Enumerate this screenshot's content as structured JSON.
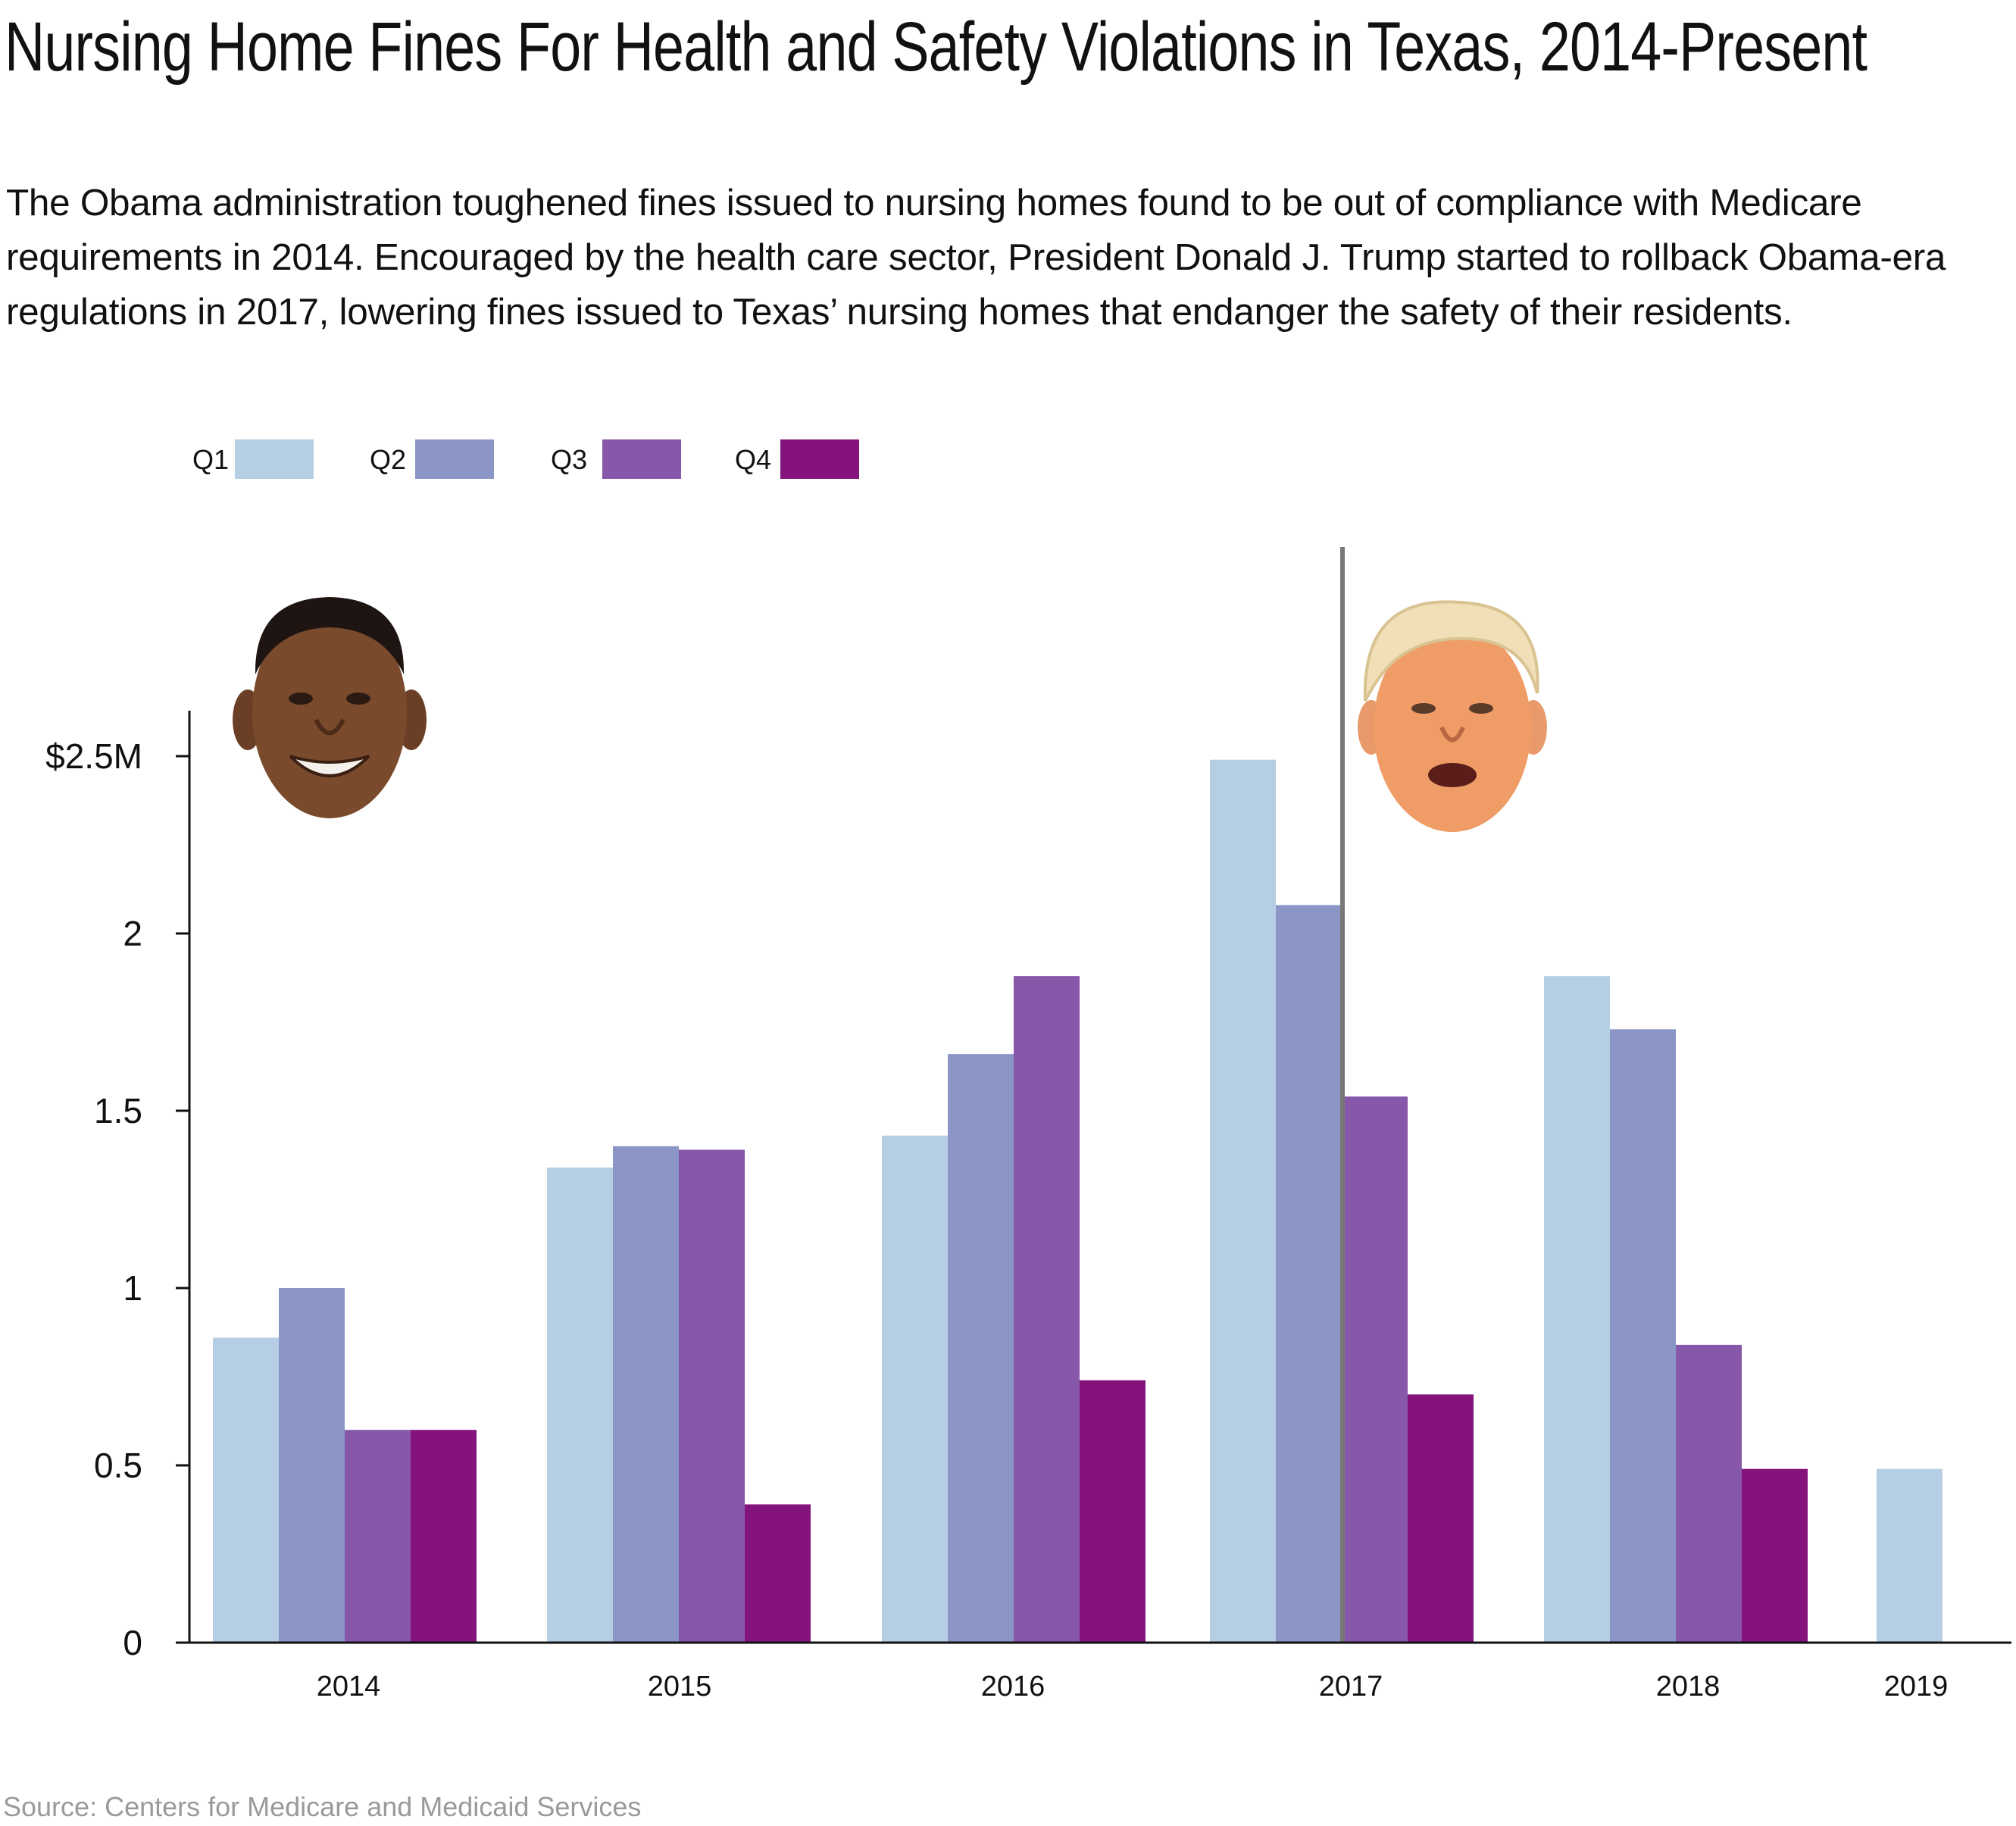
{
  "title": "Nursing Home Fines For Health and Safety Violations in Texas, 2014-Present",
  "subtitle": "The Obama administration toughened fines issued to nursing homes found to be out of compliance with Medicare requirements in 2014. Encouraged by the health care sector, President Donald J. Trump started to rollback Obama-era regulations in 2017, lowering fines issued to Texas’ nursing homes that endanger the safety of their residents.",
  "source": "Source: Centers for Medicare and Medicaid Services",
  "colors": {
    "Q1": "#b5cee3",
    "Q2": "#8b96c7",
    "Q3": "#8757a9",
    "Q4": "#84137c",
    "divider": "#777777",
    "axis": "#111111"
  },
  "chart_data": {
    "type": "bar",
    "categories": [
      "2014",
      "2015",
      "2016",
      "2017",
      "2018",
      "2019"
    ],
    "series": [
      {
        "name": "Q1",
        "values": [
          0.86,
          1.34,
          1.43,
          2.49,
          1.88,
          0.49
        ]
      },
      {
        "name": "Q2",
        "values": [
          1.0,
          1.4,
          1.66,
          2.08,
          1.73,
          null
        ]
      },
      {
        "name": "Q3",
        "values": [
          0.6,
          1.39,
          1.88,
          1.54,
          0.84,
          null
        ]
      },
      {
        "name": "Q4",
        "values": [
          0.6,
          0.39,
          0.74,
          0.7,
          0.49,
          null
        ]
      }
    ],
    "y_ticks": [
      {
        "value": 0,
        "label": "0"
      },
      {
        "value": 0.5,
        "label": "0.5"
      },
      {
        "value": 1,
        "label": "1"
      },
      {
        "value": 1.5,
        "label": "1.5"
      },
      {
        "value": 2,
        "label": "2"
      },
      {
        "value": 2.5,
        "label": "$2.5M"
      }
    ],
    "ylim": [
      0,
      2.5
    ],
    "xlabel": "",
    "ylabel": "",
    "legend": "top-left",
    "grid": false,
    "annotations": [
      {
        "type": "vertical-line",
        "note": "administration change marker within 2017"
      },
      {
        "type": "image",
        "icon": "obama-face-icon"
      },
      {
        "type": "image",
        "icon": "trump-face-icon"
      }
    ]
  }
}
